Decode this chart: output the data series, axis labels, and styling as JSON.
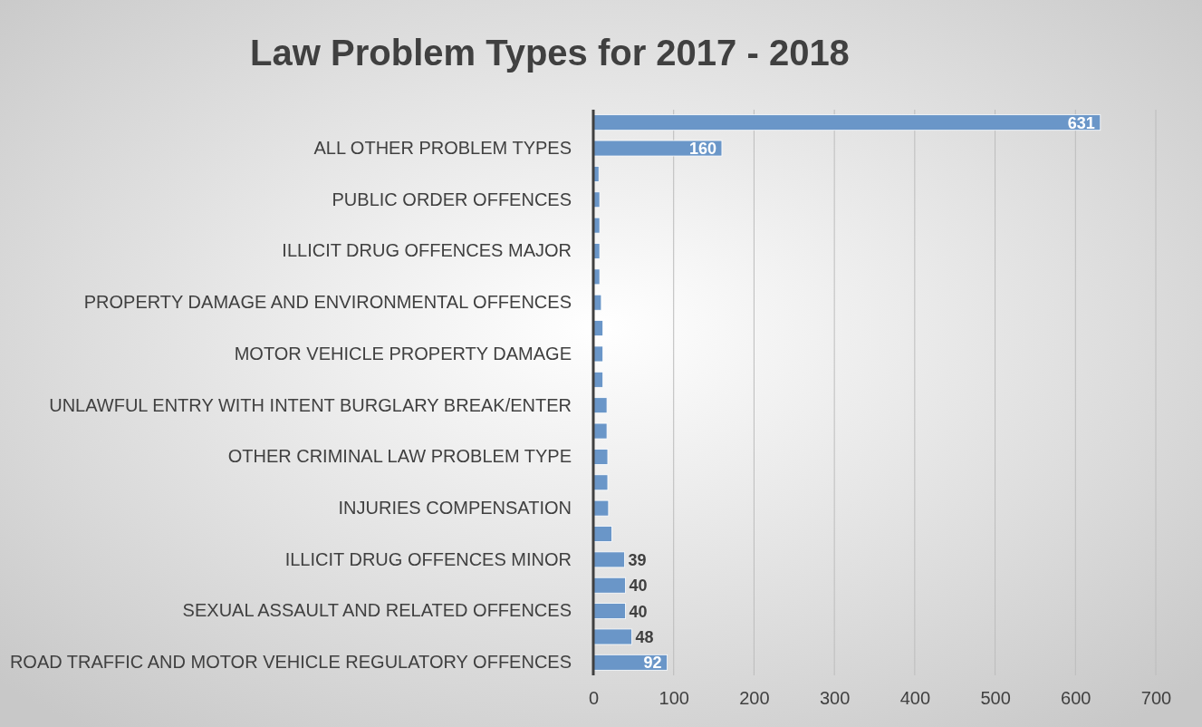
{
  "chart_data": {
    "type": "bar",
    "orientation": "horizontal",
    "title": "Law Problem Types for 2017 - 2018",
    "categories": [
      null,
      "ALL OTHER PROBLEM TYPES",
      null,
      "PUBLIC ORDER OFFENCES",
      null,
      "ILLICIT DRUG OFFENCES MAJOR",
      null,
      "PROPERTY DAMAGE AND ENVIRONMENTAL OFFENCES",
      null,
      "MOTOR VEHICLE PROPERTY DAMAGE",
      null,
      "UNLAWFUL ENTRY WITH INTENT BURGLARY BREAK/ENTER",
      null,
      "OTHER CRIMINAL LAW PROBLEM TYPE",
      null,
      "INJURIES COMPENSATION",
      null,
      "ILLICIT DRUG OFFENCES MINOR",
      null,
      "SEXUAL ASSAULT AND RELATED OFFENCES",
      null,
      "ROAD TRAFFIC AND MOTOR VEHICLE REGULATORY OFFENCES"
    ],
    "values": [
      631,
      160,
      7,
      8,
      8,
      8,
      8,
      10,
      12,
      12,
      12,
      17,
      17,
      18,
      18,
      19,
      23,
      39,
      40,
      40,
      48,
      92
    ],
    "value_labels": [
      "631",
      "160",
      null,
      null,
      null,
      null,
      null,
      null,
      null,
      null,
      null,
      null,
      null,
      null,
      null,
      null,
      null,
      "39",
      "40",
      "40",
      "48",
      "92"
    ],
    "color": "#6a96c8",
    "xlim": [
      0,
      700
    ],
    "xticks": [
      0,
      100,
      200,
      300,
      400,
      500,
      600,
      700
    ],
    "grid": "x"
  }
}
